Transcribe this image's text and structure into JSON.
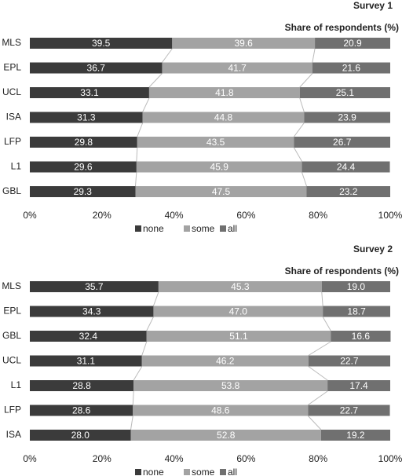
{
  "chart_data": [
    {
      "type": "bar",
      "title": "Survey 1",
      "subtitle": "Share of respondents (%)",
      "categories": [
        "MLS",
        "EPL",
        "UCL",
        "ISA",
        "LFP",
        "L1",
        "GBL"
      ],
      "series": [
        {
          "name": "none",
          "color": "#3b3b3b",
          "values": [
            39.5,
            36.7,
            33.1,
            31.3,
            29.8,
            29.6,
            29.3
          ]
        },
        {
          "name": "some",
          "color": "#a3a3a3",
          "values": [
            39.6,
            41.7,
            41.8,
            44.8,
            43.5,
            45.9,
            47.5
          ]
        },
        {
          "name": "all",
          "color": "#707070",
          "values": [
            20.9,
            21.6,
            25.1,
            23.9,
            26.7,
            24.4,
            23.2
          ]
        }
      ],
      "xlim": [
        0,
        100
      ],
      "xticks": [
        {
          "value": 0,
          "label": "0%"
        },
        {
          "value": 20,
          "label": "20%"
        },
        {
          "value": 40,
          "label": "40%"
        },
        {
          "value": 60,
          "label": "60%"
        },
        {
          "value": 80,
          "label": "80%"
        },
        {
          "value": 100,
          "label": "100%"
        }
      ]
    },
    {
      "type": "bar",
      "title": "Survey 2",
      "subtitle": "Share of respondents (%)",
      "categories": [
        "MLS",
        "EPL",
        "GBL",
        "UCL",
        "L1",
        "LFP",
        "ISA"
      ],
      "series": [
        {
          "name": "none",
          "color": "#3b3b3b",
          "values": [
            35.7,
            34.3,
            32.4,
            31.1,
            28.8,
            28.6,
            28.0
          ],
          "value_labels": [
            "35.7",
            "34.3",
            "32.4",
            "31.1",
            "28.8",
            "28.6",
            "28.0"
          ]
        },
        {
          "name": "some",
          "color": "#a3a3a3",
          "values": [
            45.3,
            47.0,
            51.1,
            46.2,
            53.8,
            48.6,
            52.8
          ],
          "value_labels": [
            "45.3",
            "47.0",
            "51.1",
            "46.2",
            "53.8",
            "48.6",
            "52.8"
          ]
        },
        {
          "name": "all",
          "color": "#707070",
          "values": [
            19.0,
            18.7,
            16.6,
            22.7,
            17.4,
            22.7,
            19.2
          ],
          "value_labels": [
            "19.0",
            "18.7",
            "16.6",
            "22.7",
            "17.4",
            "22.7",
            "19.2"
          ]
        }
      ],
      "xlim": [
        0,
        100
      ],
      "xticks": [
        {
          "value": 0,
          "label": "0%"
        },
        {
          "value": 20,
          "label": "20%"
        },
        {
          "value": 40,
          "label": "40%"
        },
        {
          "value": 60,
          "label": "60%"
        },
        {
          "value": 80,
          "label": "80%"
        },
        {
          "value": 100,
          "label": "100%"
        }
      ]
    }
  ]
}
